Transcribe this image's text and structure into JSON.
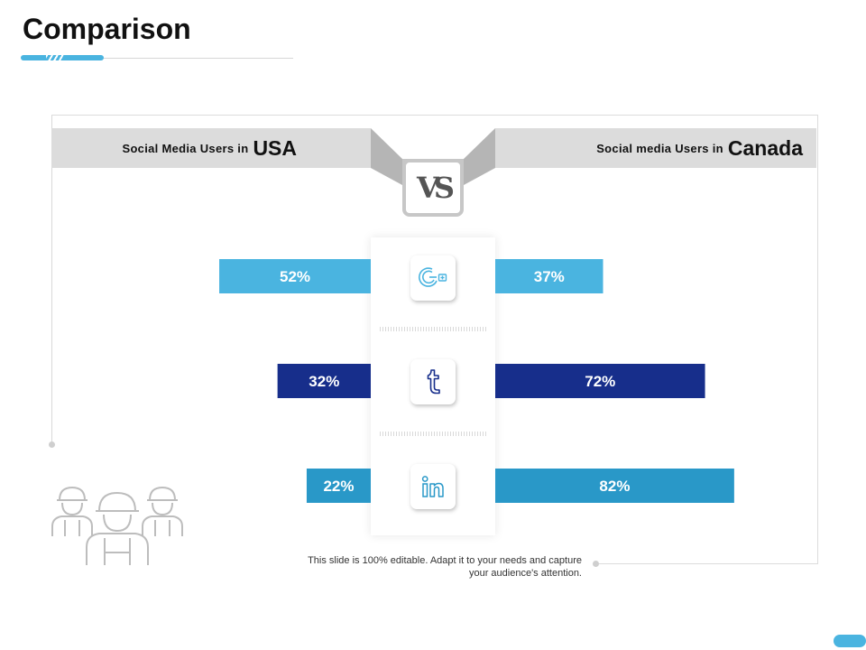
{
  "title": "Comparison",
  "left_header": {
    "label": "Social Media Users in",
    "country": "USA"
  },
  "right_header": {
    "label": "Social media Users in",
    "country": "Canada"
  },
  "vs_label": "VS",
  "footnote": {
    "line1": "This slide is 100% editable. Adapt it to your needs and capture",
    "line2": "your audience's attention."
  },
  "colors": {
    "accent": "#4ab4e0",
    "dark_blue": "#172e8b",
    "mid_blue": "#2998c8"
  },
  "icons": [
    "google-plus-icon",
    "tumblr-icon",
    "linkedin-icon"
  ],
  "chart_data": {
    "type": "bar",
    "categories": [
      "Google+",
      "Tumblr",
      "LinkedIn"
    ],
    "series": [
      {
        "name": "USA",
        "values": [
          52,
          32,
          22
        ]
      },
      {
        "name": "Canada",
        "values": [
          37,
          72,
          82
        ]
      }
    ],
    "value_labels": {
      "USA": [
        "52%",
        "32%",
        "22%"
      ],
      "Canada": [
        "37%",
        "72%",
        "82%"
      ]
    },
    "bar_colors": [
      "#4ab4e0",
      "#172e8b",
      "#2998c8"
    ],
    "ylim": [
      0,
      100
    ]
  }
}
